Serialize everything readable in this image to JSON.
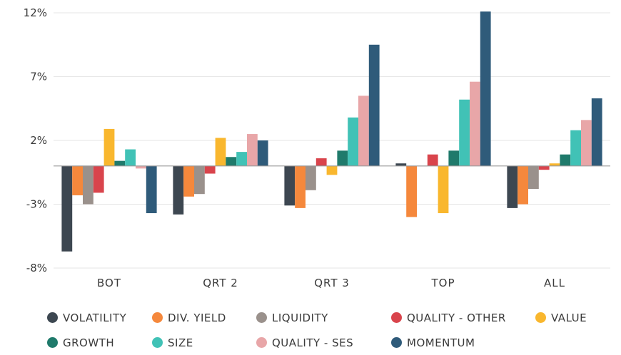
{
  "chart_data": {
    "type": "bar",
    "title": "",
    "xlabel": "",
    "ylabel": "",
    "ylim": [
      -8,
      12
    ],
    "yticks": [
      12,
      7,
      2,
      -3,
      -8
    ],
    "ytick_labels": [
      "12%",
      "7%",
      "2%",
      "-3%",
      "-8%"
    ],
    "categories": [
      "BOT",
      "QRT 2",
      "QRT 3",
      "TOP",
      "ALL"
    ],
    "series": [
      {
        "name": "VOLATILITY",
        "color": "#3d4751",
        "values": [
          -6.7,
          -3.8,
          -3.1,
          0.2,
          -3.3
        ]
      },
      {
        "name": "DIV. YIELD",
        "color": "#f5883c",
        "values": [
          -2.3,
          -2.4,
          -3.3,
          -4.0,
          -3.0
        ]
      },
      {
        "name": "LIQUIDITY",
        "color": "#9a918c",
        "values": [
          -3.0,
          -2.2,
          -1.9,
          0.0,
          -1.8
        ]
      },
      {
        "name": "QUALITY - OTHER",
        "color": "#d9444c",
        "values": [
          -2.1,
          -0.6,
          0.6,
          0.9,
          -0.3
        ]
      },
      {
        "name": "VALUE",
        "color": "#f9b72e",
        "values": [
          2.9,
          2.2,
          -0.7,
          -3.7,
          0.2
        ]
      },
      {
        "name": "GROWTH",
        "color": "#1f7a6b",
        "values": [
          0.4,
          0.7,
          1.2,
          1.2,
          0.9
        ]
      },
      {
        "name": "SIZE",
        "color": "#41c2b6",
        "values": [
          1.3,
          1.1,
          3.8,
          5.2,
          2.8
        ]
      },
      {
        "name": "QUALITY - SES",
        "color": "#e8a6a8",
        "values": [
          -0.2,
          2.5,
          5.5,
          6.6,
          3.6
        ]
      },
      {
        "name": "MOMENTUM",
        "color": "#2f5b7a",
        "values": [
          -3.7,
          2.0,
          9.5,
          12.1,
          5.3
        ]
      }
    ],
    "legend": "bottom",
    "grid": true
  }
}
